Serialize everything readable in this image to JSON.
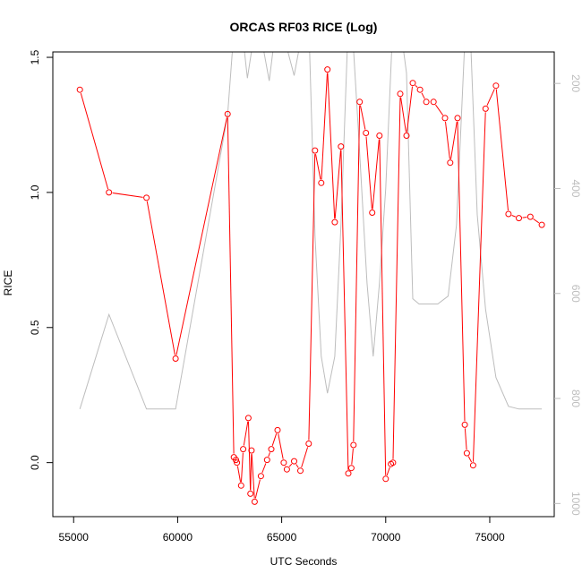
{
  "chart_data": {
    "type": "line",
    "title": "ORCAS RF03 RICE (Log)",
    "xlabel": "UTC Seconds",
    "ylabel": "RICE",
    "xlim": [
      54000,
      78100
    ],
    "ylim": [
      -0.2,
      1.52
    ],
    "x_ticks": [
      55000,
      60000,
      65000,
      70000,
      75000
    ],
    "x_tick_labels": [
      "55000",
      "60000",
      "65000",
      "70000",
      "75000"
    ],
    "y_ticks": [
      0.0,
      0.5,
      1.0,
      1.5
    ],
    "y_tick_labels": [
      "0.0",
      "0.5",
      "1.0",
      "1.5"
    ],
    "y2_reversed": true,
    "y2lim": [
      1025,
      140
    ],
    "y2_ticks": [
      200,
      400,
      600,
      800,
      1000
    ],
    "y2_tick_labels": [
      "200",
      "400",
      "600",
      "800",
      "1000"
    ],
    "grid": false,
    "series": [
      {
        "axis": "left",
        "color": "#ff0000",
        "marker": "open-circle",
        "x": [
          55300,
          56700,
          58500,
          59900,
          62400,
          62700,
          62800,
          62850,
          63050,
          63150,
          63400,
          63500,
          63550,
          63700,
          64000,
          64300,
          64500,
          64800,
          65100,
          65250,
          65600,
          65900,
          66300,
          66600,
          66900,
          67200,
          67550,
          67850,
          68200,
          68350,
          68450,
          68750,
          69050,
          69350,
          69700,
          70000,
          70250,
          70350,
          70700,
          71000,
          71300,
          71650,
          71950,
          72300,
          72850,
          73100,
          73450,
          73800,
          73900,
          74200,
          74800,
          75300,
          75900,
          76400,
          76950,
          77500
        ],
        "values": [
          1.38,
          1.0,
          0.98,
          0.385,
          1.29,
          0.02,
          0.01,
          0.0,
          -0.085,
          0.05,
          0.165,
          -0.115,
          0.045,
          -0.145,
          -0.05,
          0.01,
          0.05,
          0.12,
          0.0,
          -0.025,
          0.005,
          -0.03,
          0.07,
          1.155,
          1.035,
          1.455,
          0.89,
          1.17,
          -0.04,
          -0.02,
          0.065,
          1.335,
          1.22,
          0.925,
          1.21,
          -0.06,
          -0.005,
          0.0,
          1.365,
          1.21,
          1.405,
          1.38,
          1.335,
          1.335,
          1.275,
          1.11,
          1.275,
          0.14,
          0.035,
          -0.01,
          1.31,
          1.395,
          0.92,
          0.905,
          0.91,
          0.88
        ]
      },
      {
        "axis": "right",
        "color": "#bdbdbd",
        "marker": "none",
        "x": [
          55300,
          56700,
          58500,
          59900,
          62400,
          62700,
          62850,
          63100,
          63350,
          63700,
          63900,
          64100,
          64400,
          64700,
          65000,
          65300,
          65600,
          66000,
          66300,
          66600,
          66900,
          67200,
          67550,
          67850,
          68200,
          68400,
          68700,
          69100,
          69400,
          69700,
          70000,
          70350,
          70700,
          71000,
          71300,
          71600,
          72000,
          72500,
          73000,
          73400,
          73800,
          74100,
          74400,
          74800,
          75300,
          75900,
          76400,
          76950,
          77500
        ],
        "values": [
          820,
          640,
          820,
          820,
          260,
          100,
          80,
          100,
          190,
          100,
          80,
          130,
          195,
          100,
          80,
          140,
          185,
          100,
          80,
          490,
          720,
          790,
          720,
          470,
          80,
          100,
          300,
          580,
          720,
          580,
          400,
          80,
          90,
          180,
          610,
          620,
          620,
          620,
          605,
          470,
          120,
          140,
          450,
          630,
          760,
          815,
          820,
          820,
          820
        ]
      }
    ]
  }
}
